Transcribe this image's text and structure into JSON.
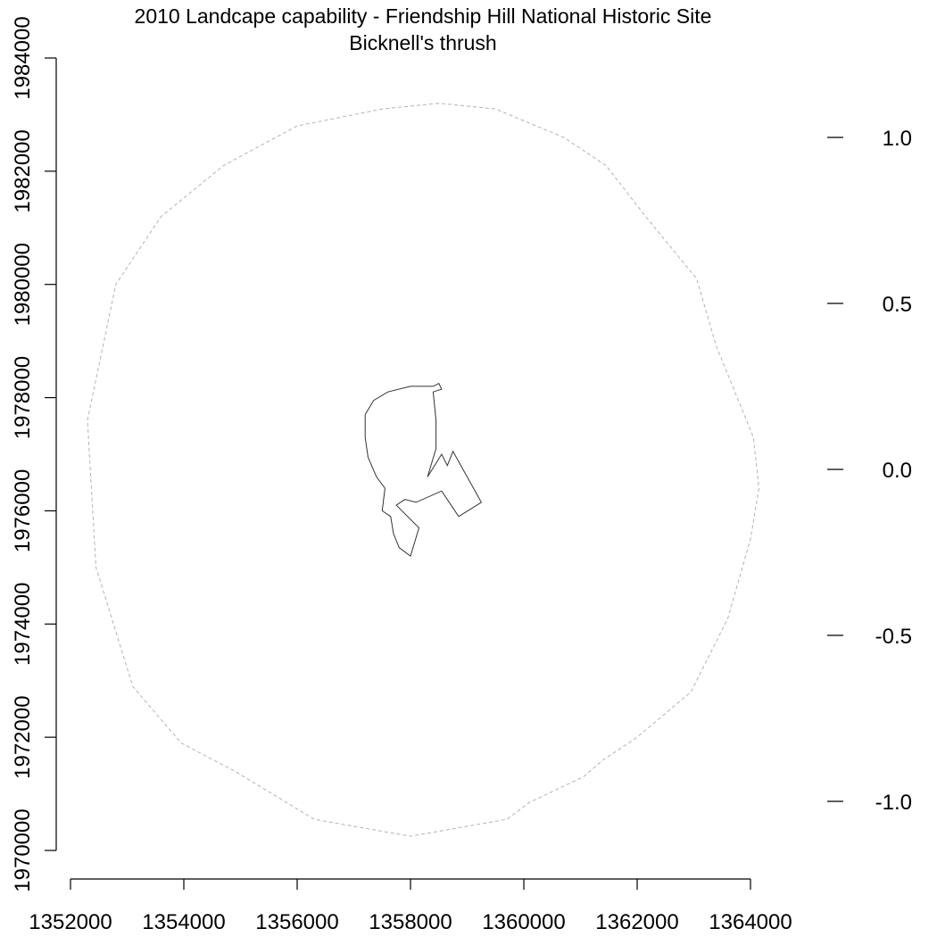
{
  "title": {
    "line1": "2010 Landcape capability - Friendship Hill National Historic Site",
    "line2": "Bicknell's thrush"
  },
  "map": {
    "x_axis": {
      "ticks": [
        1352000,
        1354000,
        1356000,
        1358000,
        1360000,
        1362000,
        1364000
      ],
      "labels": [
        "1352000",
        "1354000",
        "1356000",
        "1358000",
        "1360000",
        "1362000",
        "1364000"
      ],
      "range": [
        1352000,
        1364000
      ]
    },
    "y_axis": {
      "ticks": [
        1970000,
        1972000,
        1974000,
        1976000,
        1978000,
        1980000,
        1982000,
        1984000
      ],
      "labels": [
        "1970000",
        "1972000",
        "1974000",
        "1976000",
        "1978000",
        "1980000",
        "1982000",
        "1984000"
      ],
      "range": [
        1970000,
        1984000
      ]
    },
    "legend_scale": {
      "ticks": [
        1.0,
        0.5,
        0.0,
        -0.5,
        -1.0
      ],
      "labels": [
        "1.0",
        "0.5",
        "0.0",
        "-0.5",
        "-1.0"
      ],
      "range": [
        -1.0,
        1.0
      ]
    },
    "layers": [
      {
        "name": "buffer",
        "style": "dashed",
        "color": "#b3b3b3",
        "coordinates": [
          [
            1358500,
            1983200
          ],
          [
            1358000,
            1983150
          ],
          [
            1357500,
            1983100
          ],
          [
            1356000,
            1982800
          ],
          [
            1354700,
            1982100
          ],
          [
            1353600,
            1981200
          ],
          [
            1352800,
            1980000
          ],
          [
            1352300,
            1977600
          ],
          [
            1352450,
            1975000
          ],
          [
            1353100,
            1972900
          ],
          [
            1353950,
            1971900
          ],
          [
            1354900,
            1971400
          ],
          [
            1356300,
            1970550
          ],
          [
            1358000,
            1970250
          ],
          [
            1359700,
            1970550
          ],
          [
            1360100,
            1970850
          ],
          [
            1361050,
            1971300
          ],
          [
            1361400,
            1971600
          ],
          [
            1362000,
            1972000
          ],
          [
            1362950,
            1972800
          ],
          [
            1363600,
            1974100
          ],
          [
            1364000,
            1975500
          ],
          [
            1364150,
            1976400
          ],
          [
            1364050,
            1977300
          ],
          [
            1363400,
            1978900
          ],
          [
            1363050,
            1980100
          ],
          [
            1362150,
            1981200
          ],
          [
            1361450,
            1982100
          ],
          [
            1360700,
            1982600
          ],
          [
            1359500,
            1983100
          ],
          [
            1358500,
            1983200
          ]
        ]
      },
      {
        "name": "park boundary",
        "style": "solid",
        "color": "#333333",
        "coordinates": [
          [
            1358400,
            1978200
          ],
          [
            1358500,
            1978250
          ],
          [
            1358550,
            1978150
          ],
          [
            1358400,
            1978100
          ],
          [
            1358450,
            1977600
          ],
          [
            1358450,
            1977100
          ],
          [
            1358300,
            1976600
          ],
          [
            1358550,
            1977000
          ],
          [
            1358650,
            1976800
          ],
          [
            1358750,
            1977050
          ],
          [
            1359250,
            1976150
          ],
          [
            1358850,
            1975900
          ],
          [
            1358550,
            1976350
          ],
          [
            1358100,
            1976150
          ],
          [
            1357900,
            1976200
          ],
          [
            1357750,
            1976100
          ],
          [
            1358150,
            1975700
          ],
          [
            1358000,
            1975200
          ],
          [
            1357800,
            1975350
          ],
          [
            1357700,
            1975600
          ],
          [
            1357650,
            1975900
          ],
          [
            1357500,
            1976000
          ],
          [
            1357550,
            1976400
          ],
          [
            1357400,
            1976600
          ],
          [
            1357250,
            1976950
          ],
          [
            1357200,
            1977300
          ],
          [
            1357200,
            1977700
          ],
          [
            1357350,
            1977950
          ],
          [
            1357600,
            1978100
          ],
          [
            1358000,
            1978200
          ],
          [
            1358400,
            1978200
          ]
        ]
      }
    ]
  }
}
